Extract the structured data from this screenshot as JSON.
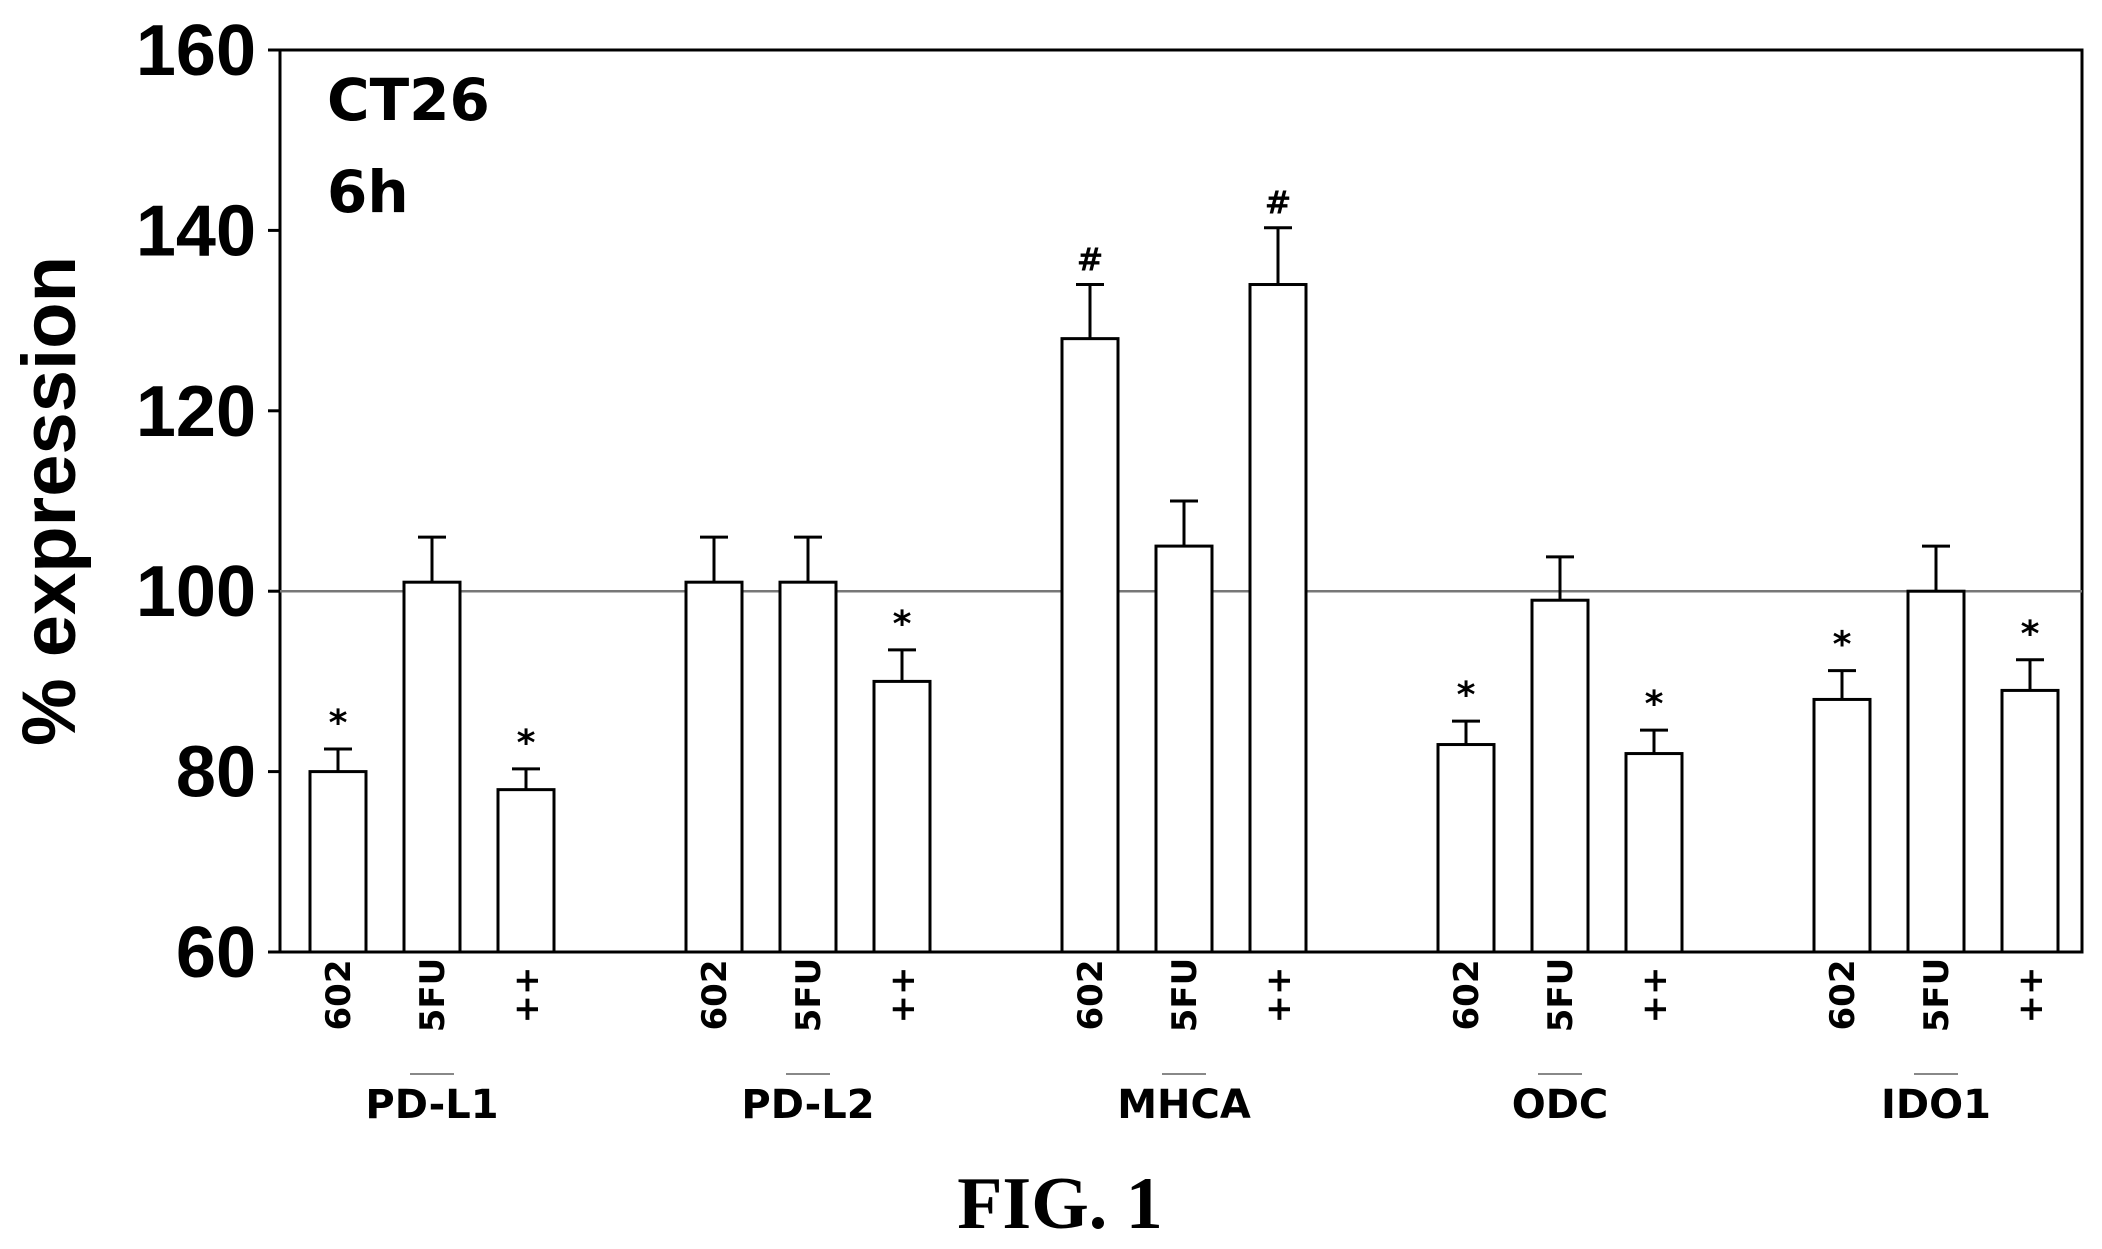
{
  "chart_data": {
    "type": "bar",
    "panel_text": [
      "CT26",
      "6h"
    ],
    "ylabel": "% expression",
    "ylim": [
      60,
      160
    ],
    "yticks": [
      60,
      80,
      100,
      120,
      140,
      160
    ],
    "reference_line": 100,
    "grid": false,
    "bar_color": "#ffffff",
    "edge_color": "#000000",
    "groups": [
      {
        "name": "PD-L1",
        "bars": [
          {
            "label": "602",
            "value": 80,
            "error": 2.5,
            "mark": "*"
          },
          {
            "label": "5FU",
            "value": 101,
            "error": 5,
            "mark": ""
          },
          {
            "label": "++",
            "value": 78,
            "error": 2.3,
            "mark": "*"
          }
        ]
      },
      {
        "name": "PD-L2",
        "bars": [
          {
            "label": "602",
            "value": 101,
            "error": 5,
            "mark": ""
          },
          {
            "label": "5FU",
            "value": 101,
            "error": 5,
            "mark": ""
          },
          {
            "label": "++",
            "value": 90,
            "error": 3.5,
            "mark": "*"
          }
        ]
      },
      {
        "name": "MHCA",
        "bars": [
          {
            "label": "602",
            "value": 128,
            "error": 6,
            "mark": "#"
          },
          {
            "label": "5FU",
            "value": 105,
            "error": 5,
            "mark": ""
          },
          {
            "label": "++",
            "value": 134,
            "error": 6.3,
            "mark": "#"
          }
        ]
      },
      {
        "name": "ODC",
        "bars": [
          {
            "label": "602",
            "value": 83,
            "error": 2.6,
            "mark": "*"
          },
          {
            "label": "5FU",
            "value": 99,
            "error": 4.8,
            "mark": ""
          },
          {
            "label": "++",
            "value": 82,
            "error": 2.6,
            "mark": "*"
          }
        ]
      },
      {
        "name": "IDO1",
        "bars": [
          {
            "label": "602",
            "value": 88,
            "error": 3.2,
            "mark": "*"
          },
          {
            "label": "5FU",
            "value": 100,
            "error": 5,
            "mark": ""
          },
          {
            "label": "++",
            "value": 89,
            "error": 3.4,
            "mark": "*"
          }
        ]
      }
    ]
  },
  "caption": "FIG. 1"
}
